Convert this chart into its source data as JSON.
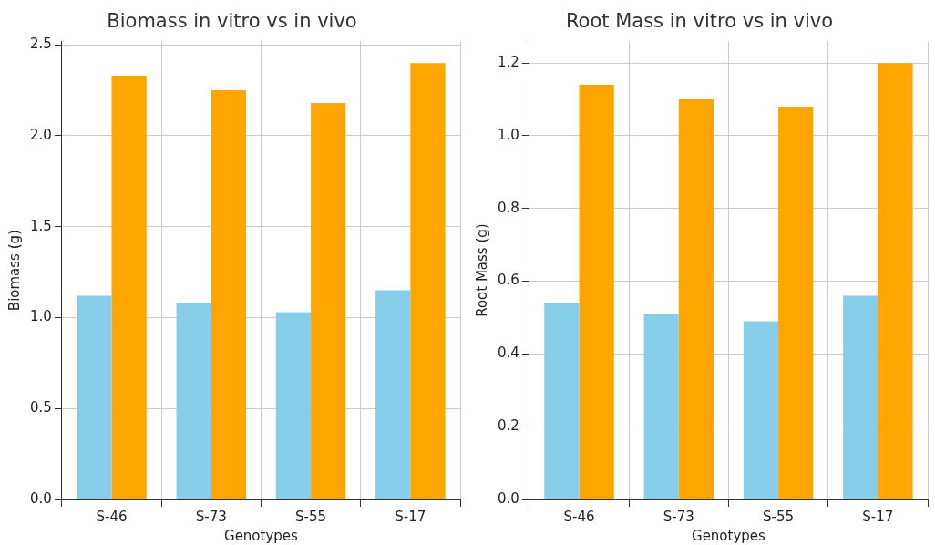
{
  "chart_data": [
    {
      "type": "bar",
      "title": "Biomass in vitro vs in vivo",
      "xlabel": "Genotypes",
      "ylabel": "Biomass (g)",
      "categories": [
        "S-46",
        "S-73",
        "S-55",
        "S-17"
      ],
      "series": [
        {
          "color": "#87ceeb",
          "values": [
            1.12,
            1.08,
            1.03,
            1.15
          ]
        },
        {
          "color": "#ffa500",
          "values": [
            2.33,
            2.25,
            2.18,
            2.4
          ]
        }
      ],
      "ylim": [
        0,
        2.52
      ],
      "yticks": [
        {
          "value": 0,
          "label": "0.0"
        },
        {
          "value": 0.5,
          "label": "0.5"
        },
        {
          "value": 1,
          "label": "1.0"
        },
        {
          "value": 1.5,
          "label": "1.5"
        },
        {
          "value": 2,
          "label": "2.0"
        },
        {
          "value": 2.5,
          "label": "2.5"
        }
      ],
      "grid": true
    },
    {
      "type": "bar",
      "title": "Root Mass in vitro vs in vivo",
      "xlabel": "Genotypes",
      "ylabel": "Root Mass (g)",
      "categories": [
        "S-46",
        "S-73",
        "S-55",
        "S-17"
      ],
      "series": [
        {
          "color": "#87ceeb",
          "values": [
            0.54,
            0.51,
            0.49,
            0.56
          ]
        },
        {
          "color": "#ffa500",
          "values": [
            1.14,
            1.1,
            1.08,
            1.2
          ]
        }
      ],
      "ylim": [
        0,
        1.26
      ],
      "yticks": [
        {
          "value": 0,
          "label": "0.0"
        },
        {
          "value": 0.2,
          "label": "0.2"
        },
        {
          "value": 0.4,
          "label": "0.4"
        },
        {
          "value": 0.6,
          "label": "0.6"
        },
        {
          "value": 0.8,
          "label": "0.8"
        },
        {
          "value": 1,
          "label": "1.0"
        },
        {
          "value": 1.2,
          "label": "1.2"
        }
      ],
      "grid": true
    }
  ]
}
